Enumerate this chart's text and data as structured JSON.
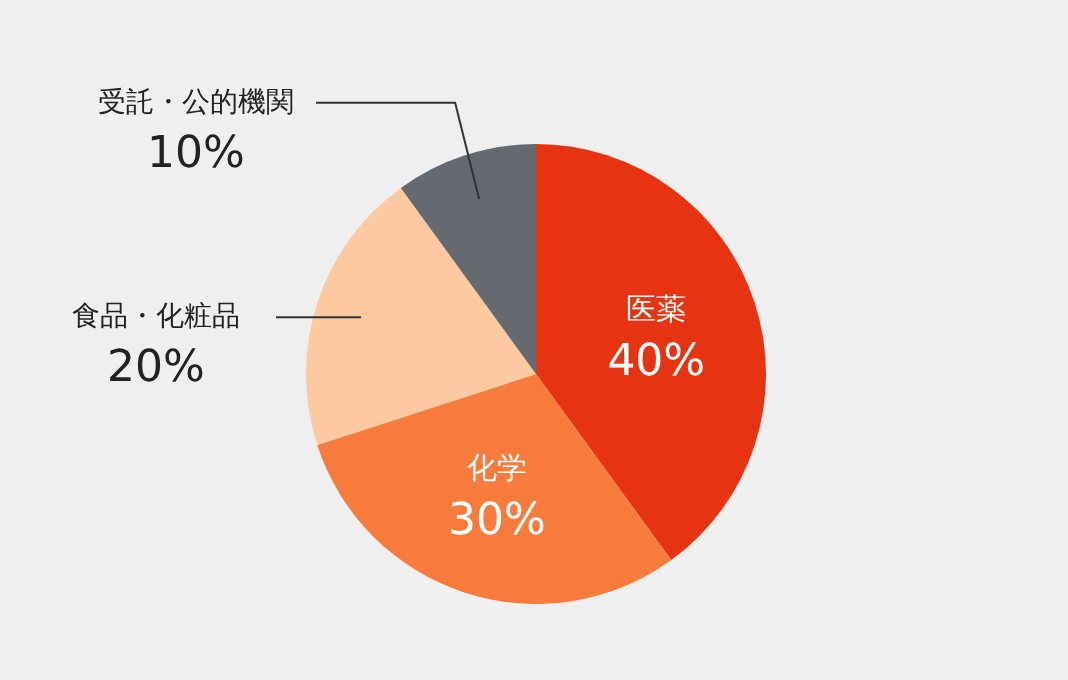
{
  "chart_data": {
    "type": "pie",
    "categories": [
      "医薬",
      "化学",
      "食品・化粧品",
      "受託・公的機関"
    ],
    "values": [
      40,
      30,
      20,
      10
    ],
    "value_labels": [
      "40%",
      "30%",
      "20%",
      "10%"
    ],
    "colors": [
      "#e63312",
      "#f77b3b",
      "#fdc9a1",
      "#656a70"
    ]
  }
}
